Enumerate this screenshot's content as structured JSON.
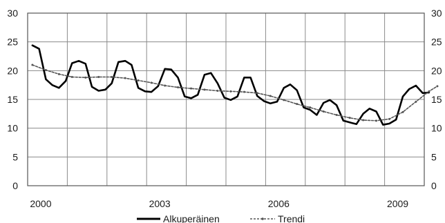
{
  "chart_data": {
    "type": "line",
    "title": "",
    "xlabel": "",
    "ylabel": "",
    "xlim": [
      1999.67,
      2009.67
    ],
    "ylim": [
      0,
      30
    ],
    "y_ticks": [
      0,
      5,
      10,
      15,
      20,
      25,
      30
    ],
    "x_tick_labels": [
      "2000",
      "2003",
      "2006",
      "2009"
    ],
    "x_tick_values": [
      2000,
      2003,
      2006,
      2009
    ],
    "grid": true,
    "right_axis_mirror": true,
    "legend_position": "bottom",
    "series": [
      {
        "name": "Alkuperäinen",
        "style": "solid",
        "color": "#000000",
        "points": [
          [
            1999.79,
            24.4
          ],
          [
            1999.96,
            23.8
          ],
          [
            2000.13,
            18.5
          ],
          [
            2000.29,
            17.5
          ],
          [
            2000.46,
            17.0
          ],
          [
            2000.63,
            18.2
          ],
          [
            2000.79,
            21.3
          ],
          [
            2000.96,
            21.7
          ],
          [
            2001.13,
            21.2
          ],
          [
            2001.29,
            17.2
          ],
          [
            2001.46,
            16.5
          ],
          [
            2001.63,
            16.7
          ],
          [
            2001.79,
            17.8
          ],
          [
            2001.96,
            21.5
          ],
          [
            2002.13,
            21.7
          ],
          [
            2002.29,
            21.0
          ],
          [
            2002.46,
            17.0
          ],
          [
            2002.63,
            16.4
          ],
          [
            2002.79,
            16.3
          ],
          [
            2002.96,
            17.3
          ],
          [
            2003.13,
            20.3
          ],
          [
            2003.29,
            20.2
          ],
          [
            2003.46,
            18.8
          ],
          [
            2003.63,
            15.5
          ],
          [
            2003.79,
            15.2
          ],
          [
            2003.96,
            15.8
          ],
          [
            2004.13,
            19.3
          ],
          [
            2004.29,
            19.6
          ],
          [
            2004.46,
            17.8
          ],
          [
            2004.63,
            15.3
          ],
          [
            2004.79,
            14.9
          ],
          [
            2004.96,
            15.5
          ],
          [
            2005.13,
            18.8
          ],
          [
            2005.29,
            18.8
          ],
          [
            2005.46,
            15.6
          ],
          [
            2005.63,
            14.7
          ],
          [
            2005.79,
            14.3
          ],
          [
            2005.96,
            14.6
          ],
          [
            2006.13,
            17.0
          ],
          [
            2006.29,
            17.6
          ],
          [
            2006.46,
            16.6
          ],
          [
            2006.63,
            13.6
          ],
          [
            2006.79,
            13.2
          ],
          [
            2006.96,
            12.3
          ],
          [
            2007.13,
            14.4
          ],
          [
            2007.29,
            14.9
          ],
          [
            2007.46,
            14.0
          ],
          [
            2007.63,
            11.3
          ],
          [
            2007.79,
            11.0
          ],
          [
            2007.96,
            10.7
          ],
          [
            2008.13,
            12.5
          ],
          [
            2008.29,
            13.4
          ],
          [
            2008.46,
            12.9
          ],
          [
            2008.63,
            10.6
          ],
          [
            2008.79,
            10.8
          ],
          [
            2008.96,
            11.5
          ],
          [
            2009.13,
            15.5
          ],
          [
            2009.29,
            16.8
          ],
          [
            2009.46,
            17.4
          ],
          [
            2009.63,
            16.1
          ],
          [
            2009.79,
            16.2
          ]
        ]
      },
      {
        "name": "Trendi",
        "style": "dashed-with-markers",
        "color": "#555555",
        "points": [
          [
            1999.79,
            21.0
          ],
          [
            2000.13,
            20.1
          ],
          [
            2000.46,
            19.4
          ],
          [
            2000.79,
            18.9
          ],
          [
            2001.13,
            18.8
          ],
          [
            2001.46,
            18.9
          ],
          [
            2001.79,
            18.9
          ],
          [
            2002.13,
            18.7
          ],
          [
            2002.46,
            18.3
          ],
          [
            2002.79,
            17.9
          ],
          [
            2003.13,
            17.4
          ],
          [
            2003.46,
            17.1
          ],
          [
            2003.79,
            16.9
          ],
          [
            2004.13,
            16.7
          ],
          [
            2004.46,
            16.5
          ],
          [
            2004.79,
            16.4
          ],
          [
            2005.13,
            16.3
          ],
          [
            2005.46,
            16.1
          ],
          [
            2005.79,
            15.6
          ],
          [
            2006.13,
            14.9
          ],
          [
            2006.46,
            14.2
          ],
          [
            2006.79,
            13.6
          ],
          [
            2007.13,
            12.9
          ],
          [
            2007.46,
            12.3
          ],
          [
            2007.79,
            11.8
          ],
          [
            2008.13,
            11.4
          ],
          [
            2008.46,
            11.3
          ],
          [
            2008.79,
            11.6
          ],
          [
            2009.13,
            12.8
          ],
          [
            2009.46,
            14.6
          ],
          [
            2009.79,
            16.4
          ],
          [
            2010.0,
            17.3
          ]
        ]
      }
    ]
  }
}
